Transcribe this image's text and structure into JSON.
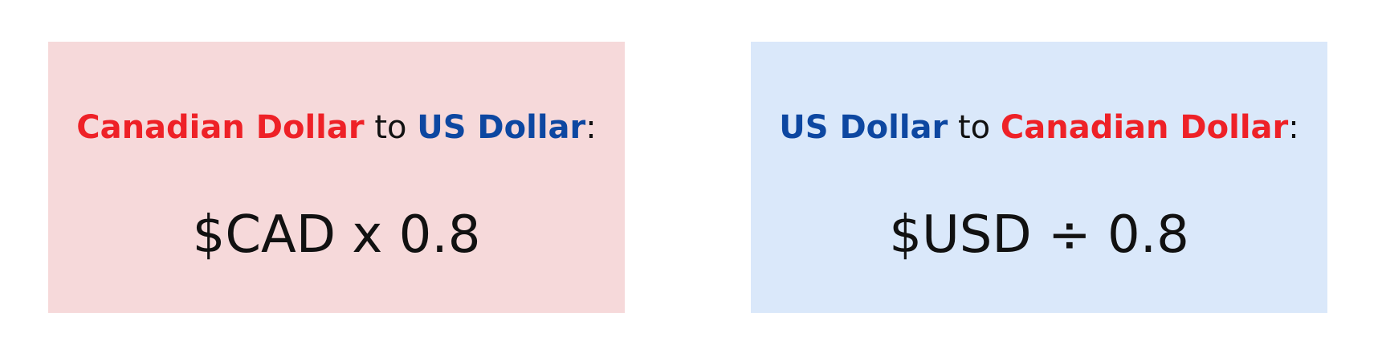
{
  "colors": {
    "left_card_bg": "#f6d9da",
    "right_card_bg": "#dae8fa",
    "canadian_dollar_text": "#ee2127",
    "us_dollar_text": "#0d47a1",
    "body_text": "#111111"
  },
  "cad_to_usd": {
    "from": "Canadian Dollar",
    "connector": "to",
    "to": "US Dollar",
    "colon": ":",
    "formula": "$CAD x 0.8"
  },
  "usd_to_cad": {
    "from": "US Dollar",
    "connector": "to",
    "to": "Canadian Dollar",
    "colon": ":",
    "formula": "$USD ÷ 0.8"
  }
}
